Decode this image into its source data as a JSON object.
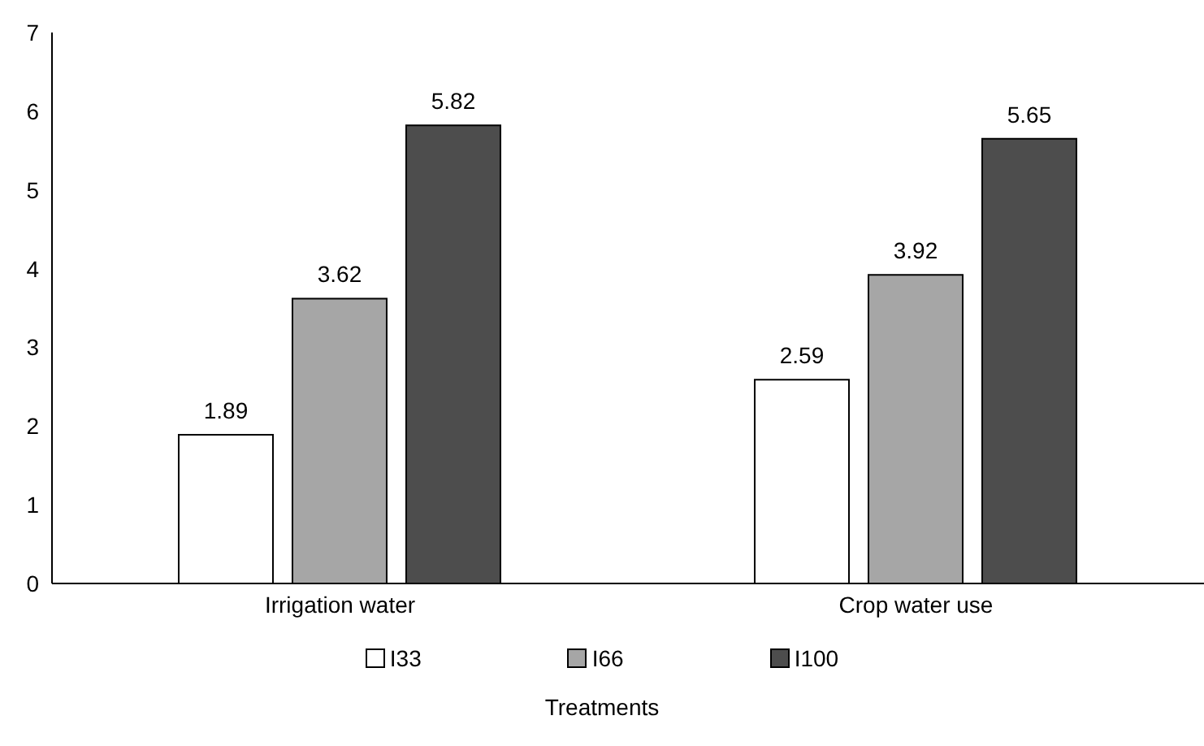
{
  "chart_data": {
    "type": "bar",
    "xlabel": "Treatments",
    "categories": [
      "Irrigation water",
      "Crop water use"
    ],
    "series": [
      {
        "name": "I33",
        "color": "#ffffff",
        "values": [
          1.89,
          2.59
        ]
      },
      {
        "name": "I66",
        "color": "#a6a6a6",
        "values": [
          3.62,
          3.92
        ]
      },
      {
        "name": "I100",
        "color": "#4d4d4d",
        "values": [
          5.82,
          5.65
        ]
      }
    ],
    "ylim": [
      0,
      7
    ],
    "yticks": [
      0,
      1,
      2,
      3,
      4,
      5,
      6,
      7
    ],
    "grid": false,
    "legend": "bottom",
    "data_labels": true
  }
}
